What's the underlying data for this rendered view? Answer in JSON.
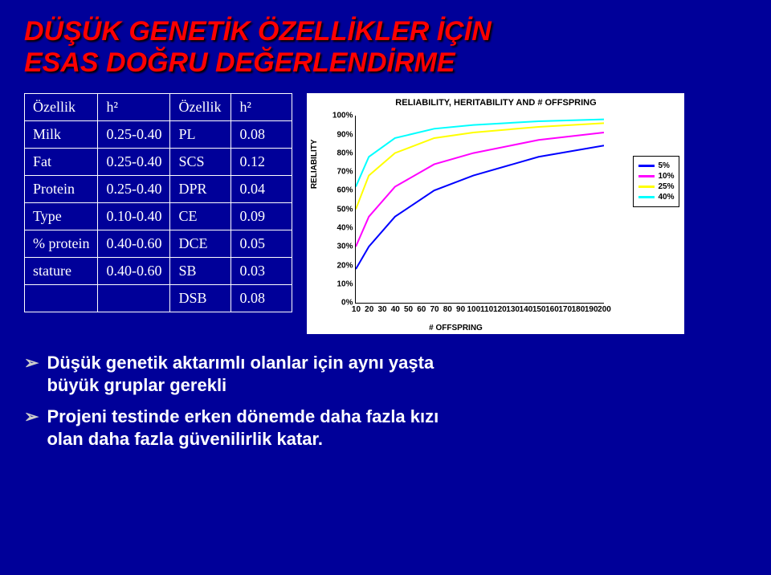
{
  "title_line1": "DÜŞÜK GENETİK ÖZELLİKLER İÇİN",
  "title_line2": "ESAS DOĞRU DEĞERLENDİRME",
  "table": {
    "head": [
      "Özellik",
      "h²",
      "Özellik",
      "h²"
    ],
    "rows": [
      [
        "Milk",
        "0.25-0.40",
        "PL",
        "0.08"
      ],
      [
        "Fat",
        "0.25-0.40",
        "SCS",
        "0.12"
      ],
      [
        "Protein",
        "0.25-0.40",
        "DPR",
        "0.04"
      ],
      [
        "Type",
        "0.10-0.40",
        "CE",
        "0.09"
      ],
      [
        "% protein",
        "0.40-0.60",
        "DCE",
        "0.05"
      ],
      [
        "stature",
        "0.40-0.60",
        "SB",
        "0.03"
      ],
      [
        "",
        "",
        "DSB",
        "0.08"
      ]
    ]
  },
  "chart": {
    "title": "RELIABILITY, HERITABILITY AND # OFFSPRING",
    "ylabel": "RELIABILITY",
    "xlabel": "# OFFSPRING",
    "ylim": [
      0,
      100
    ],
    "ytick_step": 10,
    "xlim": [
      10,
      200
    ],
    "xtick_step": 10,
    "background": "#ffffff",
    "series": [
      {
        "name": "5%",
        "color": "#0000ff",
        "width": 2,
        "y_at_x": {
          "10": 18,
          "20": 30,
          "40": 46,
          "70": 60,
          "100": 68,
          "150": 78,
          "200": 84
        }
      },
      {
        "name": "10%",
        "color": "#ff00ff",
        "width": 2,
        "y_at_x": {
          "10": 30,
          "20": 46,
          "40": 62,
          "70": 74,
          "100": 80,
          "150": 87,
          "200": 91
        }
      },
      {
        "name": "25%",
        "color": "#ffff00",
        "width": 2,
        "y_at_x": {
          "10": 50,
          "20": 68,
          "40": 80,
          "70": 88,
          "100": 91,
          "150": 94,
          "200": 96
        }
      },
      {
        "name": "40%",
        "color": "#00ffff",
        "width": 2,
        "y_at_x": {
          "10": 62,
          "20": 78,
          "40": 88,
          "70": 93,
          "100": 95,
          "150": 97,
          "200": 98
        }
      }
    ]
  },
  "bullets": [
    "Düşük genetik aktarımlı olanlar için aynı yaşta büyük gruplar gerekli",
    "Projeni testinde erken dönemde daha fazla kızı olan daha fazla güvenilirlik katar."
  ]
}
